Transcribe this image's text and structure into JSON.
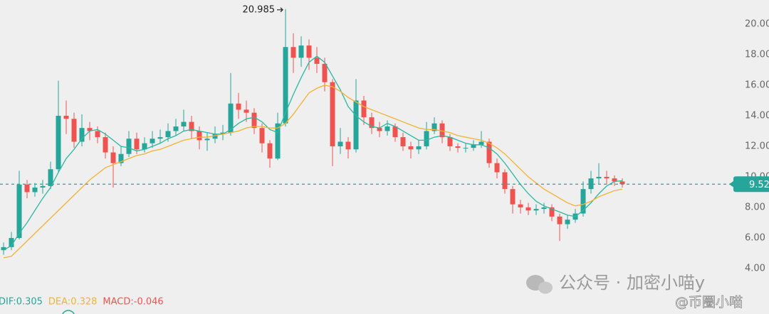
{
  "chart_data": {
    "type": "candlestick",
    "open": [
      5.2,
      5.4,
      6.0,
      9.5,
      9.0,
      9.3,
      9.4,
      10.5,
      14.0,
      13.8,
      12.3,
      13.2,
      13.0,
      12.6,
      11.6,
      10.9,
      11.5,
      12.5,
      11.8,
      12.2,
      12.5,
      12.6,
      13.0,
      13.3,
      13.6,
      13.0,
      12.4,
      12.5,
      12.8,
      12.9,
      14.8,
      14.4,
      14.2,
      13.2,
      12.2,
      11.2,
      13.5,
      18.5,
      17.8,
      18.6,
      17.8,
      17.4,
      16.2,
      12.0,
      12.3,
      11.8,
      15.0,
      13.9,
      13.2,
      13.0,
      13.3,
      12.6,
      12.0,
      11.8,
      12.0,
      13.0,
      13.5,
      12.6,
      12.0,
      11.9,
      11.9,
      12.1,
      12.3,
      10.9,
      10.3,
      9.2,
      8.2,
      8.0,
      7.8,
      7.9,
      8.0,
      7.4,
      6.9,
      7.2,
      7.6,
      9.2,
      9.9,
      10.0,
      9.9,
      9.7
    ],
    "high": [
      5.7,
      6.4,
      10.4,
      9.8,
      9.6,
      9.8,
      11.0,
      16.3,
      15.0,
      14.2,
      14.1,
      13.6,
      13.3,
      12.9,
      12.0,
      12.0,
      13.0,
      12.9,
      12.6,
      13.0,
      13.1,
      13.5,
      13.8,
      14.4,
      14.0,
      13.3,
      12.9,
      13.3,
      13.4,
      16.8,
      15.5,
      15.0,
      14.5,
      13.5,
      12.4,
      14.2,
      20.985,
      19.4,
      19.2,
      19.0,
      18.5,
      17.8,
      16.4,
      13.2,
      12.6,
      16.4,
      15.3,
      14.2,
      13.6,
      13.7,
      13.5,
      12.9,
      12.3,
      12.4,
      13.6,
      13.9,
      13.7,
      12.8,
      12.2,
      12.2,
      12.4,
      13.0,
      12.5,
      11.2,
      10.5,
      9.4,
      8.5,
      8.3,
      8.2,
      8.3,
      8.2,
      7.6,
      7.5,
      7.9,
      9.7,
      10.4,
      10.9,
      10.4,
      10.1,
      9.9
    ],
    "low": [
      4.9,
      5.2,
      5.9,
      8.6,
      8.7,
      8.9,
      9.2,
      10.3,
      12.8,
      11.9,
      12.0,
      12.4,
      12.2,
      11.2,
      9.3,
      10.7,
      11.3,
      11.5,
      11.6,
      11.9,
      12.2,
      12.3,
      12.7,
      13.0,
      12.5,
      11.8,
      11.7,
      12.2,
      12.4,
      12.7,
      13.8,
      13.6,
      12.8,
      11.6,
      10.6,
      11.1,
      13.3,
      16.8,
      17.2,
      17.0,
      16.8,
      15.6,
      10.7,
      11.5,
      11.2,
      11.6,
      13.4,
      12.8,
      12.6,
      12.7,
      12.3,
      11.7,
      11.2,
      11.5,
      11.8,
      12.8,
      12.2,
      11.7,
      11.6,
      11.6,
      11.7,
      11.9,
      10.6,
      9.9,
      8.9,
      7.6,
      7.6,
      7.5,
      7.5,
      7.6,
      7.1,
      5.8,
      6.6,
      7.0,
      7.4,
      8.9,
      9.5,
      9.5,
      9.4,
      9.3
    ],
    "close": [
      5.4,
      6.0,
      9.5,
      9.0,
      9.3,
      9.4,
      10.5,
      14.0,
      13.8,
      12.3,
      13.2,
      13.0,
      12.6,
      11.6,
      10.9,
      11.5,
      12.5,
      11.8,
      12.2,
      12.5,
      12.6,
      13.0,
      13.3,
      13.6,
      13.0,
      12.4,
      12.5,
      12.8,
      12.9,
      14.8,
      14.4,
      14.2,
      13.2,
      12.2,
      11.2,
      13.5,
      18.5,
      17.8,
      18.6,
      17.8,
      17.4,
      16.2,
      12.0,
      12.3,
      11.8,
      15.0,
      13.9,
      13.2,
      13.0,
      13.3,
      12.6,
      12.0,
      11.8,
      12.0,
      13.0,
      13.5,
      12.6,
      12.0,
      11.9,
      11.9,
      12.1,
      12.3,
      10.9,
      10.3,
      9.2,
      8.2,
      8.0,
      7.8,
      7.9,
      8.0,
      7.4,
      6.9,
      7.2,
      7.6,
      9.2,
      9.9,
      10.0,
      9.9,
      9.7,
      9.52
    ],
    "up_color": "#26a69a",
    "down_color": "#ef5350",
    "series": [
      {
        "color": "#2bb8a0",
        "values": [
          5.2,
          5.5,
          6.3,
          7.0,
          7.8,
          8.6,
          9.3,
          10.3,
          11.2,
          11.8,
          12.5,
          13.0,
          13.1,
          12.8,
          12.4,
          12.0,
          11.9,
          11.7,
          11.8,
          12.0,
          12.2,
          12.5,
          12.7,
          13.0,
          13.1,
          13.0,
          12.9,
          12.8,
          12.8,
          13.1,
          13.5,
          13.8,
          13.9,
          13.6,
          13.1,
          12.9,
          14.2,
          15.4,
          16.5,
          17.5,
          17.9,
          17.5,
          16.6,
          15.7,
          14.6,
          14.0,
          13.6,
          13.3,
          13.2,
          13.5,
          13.3,
          13.0,
          12.7,
          12.4,
          12.4,
          12.6,
          12.7,
          12.6,
          12.4,
          12.2,
          12.1,
          12.1,
          11.9,
          11.5,
          10.9,
          10.2,
          9.5,
          8.9,
          8.4,
          8.1,
          7.9,
          7.7,
          7.5,
          7.4,
          7.8,
          8.3,
          8.9,
          9.4,
          9.7,
          9.75
        ]
      },
      {
        "color": "#f2b233",
        "values": [
          4.7,
          4.8,
          5.3,
          5.8,
          6.3,
          6.8,
          7.3,
          7.8,
          8.3,
          8.8,
          9.3,
          9.8,
          10.2,
          10.6,
          10.8,
          11.0,
          11.2,
          11.4,
          11.5,
          11.7,
          11.8,
          12.0,
          12.2,
          12.4,
          12.5,
          12.6,
          12.6,
          12.7,
          12.8,
          12.9,
          13.0,
          13.2,
          13.3,
          13.3,
          13.2,
          13.2,
          13.5,
          14.1,
          14.8,
          15.5,
          15.8,
          16.0,
          15.9,
          15.6,
          15.2,
          14.9,
          14.6,
          14.4,
          14.2,
          14.0,
          13.8,
          13.6,
          13.4,
          13.2,
          13.1,
          13.1,
          13.0,
          12.9,
          12.7,
          12.6,
          12.5,
          12.4,
          12.2,
          11.9,
          11.5,
          11.0,
          10.5,
          10.0,
          9.6,
          9.2,
          8.9,
          8.6,
          8.3,
          8.1,
          8.2,
          8.4,
          8.7,
          8.9,
          9.1,
          9.2
        ]
      }
    ],
    "ylim": [
      2.51,
      21.58
    ],
    "yticks": [
      {
        "value": 4,
        "label": "4.00"
      },
      {
        "value": 6,
        "label": "6.00"
      },
      {
        "value": 8,
        "label": "8.00"
      },
      {
        "value": 10,
        "label": "10.00"
      },
      {
        "value": 12,
        "label": "12.00"
      },
      {
        "value": 14,
        "label": "14.00"
      },
      {
        "value": 16,
        "label": "16.00"
      },
      {
        "value": 18,
        "label": "18.00"
      },
      {
        "value": 20,
        "label": "20.00"
      }
    ],
    "grid": false,
    "max_label": "20.985",
    "last_price": 9.52,
    "indicators": [
      "DIF:0.305",
      "DEA:0.328",
      "MACD:-0.046"
    ],
    "watermark": "公众号 · 加密小喵y",
    "watermark2": "@币圈小喵"
  }
}
